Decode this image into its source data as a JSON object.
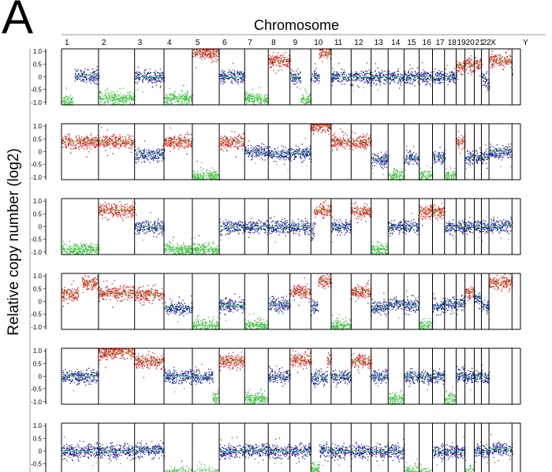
{
  "figure": {
    "panel_label": "A",
    "x_title": "Chromosome",
    "y_title": "Relative copy number (log2)"
  },
  "colors": {
    "gain": "#e0201b",
    "neutral": "#1f2a9e",
    "loss": "#3fbf3f",
    "axis": "#000000"
  },
  "chart_data": {
    "type": "scatter",
    "title": "",
    "xlabel": "Chromosome",
    "ylabel": "Relative copy number (log2)",
    "ylim": [
      -1.1,
      1.1
    ],
    "yticks": [
      1.0,
      0.5,
      0,
      -0.5,
      -1.0
    ],
    "ytick_labels": [
      "1.0",
      "0.5",
      "0",
      "-0.5",
      "-1.0"
    ],
    "chromosomes": [
      "1",
      "2",
      "3",
      "4",
      "5",
      "6",
      "7",
      "8",
      "9",
      "10",
      "11",
      "12",
      "13",
      "14",
      "15",
      "16",
      "17",
      "18",
      "19",
      "20",
      "21",
      "22",
      "X",
      "Y"
    ],
    "chromosome_relative_lengths": [
      249,
      243,
      198,
      191,
      181,
      171,
      159,
      146,
      141,
      136,
      135,
      134,
      115,
      107,
      102,
      90,
      81,
      78,
      59,
      63,
      48,
      51,
      155,
      57
    ],
    "samples": [
      {
        "segments": [
          [
            1,
            0,
            0.3,
            -0.95
          ],
          [
            1,
            0.35,
            1,
            0.05
          ],
          [
            2,
            0,
            1,
            -0.85
          ],
          [
            3,
            0,
            1,
            0
          ],
          [
            4,
            0,
            1,
            -0.85
          ],
          [
            5,
            0,
            1,
            0.95
          ],
          [
            6,
            0,
            1,
            0
          ],
          [
            7,
            0,
            1,
            -0.85
          ],
          [
            8,
            0,
            1,
            0.65
          ],
          [
            9,
            0,
            0.5,
            0
          ],
          [
            9,
            0.5,
            1,
            -0.9
          ],
          [
            10,
            0,
            0.4,
            0
          ],
          [
            10,
            0.4,
            1,
            0.95
          ],
          [
            11,
            0,
            1,
            0
          ],
          [
            12,
            0,
            1,
            0
          ],
          [
            13,
            0,
            1,
            0
          ],
          [
            14,
            0,
            1,
            0
          ],
          [
            15,
            0,
            1,
            0
          ],
          [
            16,
            0,
            1,
            0
          ],
          [
            17,
            0,
            1,
            0
          ],
          [
            18,
            0,
            1,
            0
          ],
          [
            19,
            0,
            1,
            0.45
          ],
          [
            20,
            0,
            1,
            0.5
          ],
          [
            21,
            0,
            1,
            0.5
          ],
          [
            22,
            0,
            0.7,
            -0.05
          ],
          [
            22,
            0.7,
            1,
            -0.35
          ],
          [
            23,
            0,
            1,
            0.65
          ],
          [
            24,
            0,
            0.03,
            0
          ]
        ]
      },
      {
        "segments": [
          [
            1,
            0,
            1,
            0.4
          ],
          [
            2,
            0,
            1,
            0.4
          ],
          [
            3,
            0,
            1,
            -0.1
          ],
          [
            4,
            0,
            1,
            0.4
          ],
          [
            5,
            0,
            1,
            -0.95
          ],
          [
            6,
            0,
            1,
            0.4
          ],
          [
            7,
            0,
            1,
            0
          ],
          [
            8,
            0,
            1,
            -0.1
          ],
          [
            9,
            0,
            1,
            -0.05
          ],
          [
            10,
            0,
            1,
            1.0
          ],
          [
            11,
            0,
            1,
            0.4
          ],
          [
            12,
            0,
            1,
            0.4
          ],
          [
            13,
            0,
            1,
            -0.3
          ],
          [
            14,
            0,
            1,
            -0.95
          ],
          [
            15,
            0,
            1,
            -0.25
          ],
          [
            16,
            0,
            1,
            -0.95
          ],
          [
            17,
            0,
            1,
            -0.2
          ],
          [
            18,
            0,
            1,
            -0.95
          ],
          [
            19,
            0,
            1,
            0.35
          ],
          [
            20,
            0,
            1,
            -0.2
          ],
          [
            21,
            0,
            1,
            -0.2
          ],
          [
            22,
            0,
            1,
            -0.2
          ],
          [
            23,
            0,
            1,
            0
          ]
        ]
      },
      {
        "segments": [
          [
            1,
            0,
            1,
            -0.9
          ],
          [
            2,
            0,
            1,
            0.65
          ],
          [
            3,
            0,
            1,
            0
          ],
          [
            4,
            0,
            1,
            -0.9
          ],
          [
            5,
            0,
            1,
            -0.9
          ],
          [
            6,
            0,
            1,
            0
          ],
          [
            7,
            0,
            1,
            0
          ],
          [
            8,
            0,
            1,
            0
          ],
          [
            9,
            0,
            1,
            0
          ],
          [
            10,
            0,
            0.15,
            -0.2
          ],
          [
            10,
            0.15,
            1,
            0.65
          ],
          [
            11,
            0,
            1,
            0
          ],
          [
            12,
            0,
            1,
            0.6
          ],
          [
            13,
            0,
            1,
            -0.9
          ],
          [
            14,
            0,
            1,
            0
          ],
          [
            15,
            0,
            1,
            0
          ],
          [
            16,
            0,
            1,
            0.6
          ],
          [
            17,
            0,
            1,
            0.6
          ],
          [
            18,
            0,
            1,
            0
          ],
          [
            19,
            0,
            1,
            0
          ],
          [
            20,
            0,
            1,
            0
          ],
          [
            21,
            0,
            1,
            0
          ],
          [
            22,
            0,
            1,
            0
          ],
          [
            23,
            0,
            0.5,
            0
          ],
          [
            23,
            0.5,
            1,
            0.05
          ]
        ]
      },
      {
        "segments": [
          [
            1,
            0,
            0.45,
            0.3
          ],
          [
            1,
            0.55,
            1,
            0.75
          ],
          [
            2,
            0,
            1,
            0.35
          ],
          [
            3,
            0,
            1,
            0.3
          ],
          [
            4,
            0,
            1,
            -0.25
          ],
          [
            5,
            0,
            1,
            -0.95
          ],
          [
            6,
            0,
            1,
            -0.15
          ],
          [
            7,
            0,
            1,
            -0.95
          ],
          [
            8,
            0,
            1,
            -0.1
          ],
          [
            9,
            0,
            1,
            0.4
          ],
          [
            10,
            0,
            0.35,
            -0.2
          ],
          [
            10,
            0.35,
            1,
            0.8
          ],
          [
            11,
            0,
            1,
            -0.95
          ],
          [
            12,
            0,
            1,
            0.4
          ],
          [
            13,
            0,
            1,
            -0.25
          ],
          [
            14,
            0,
            1,
            -0.1
          ],
          [
            15,
            0,
            1,
            -0.15
          ],
          [
            16,
            0,
            1,
            -0.95
          ],
          [
            17,
            0,
            1,
            -0.2
          ],
          [
            18,
            0,
            1,
            -0.1
          ],
          [
            19,
            0,
            1,
            -0.1
          ],
          [
            20,
            0,
            1,
            0.35
          ],
          [
            21,
            0,
            1,
            0.1
          ],
          [
            22,
            0,
            1,
            -0.2
          ],
          [
            23,
            0,
            1,
            0.75
          ]
        ]
      },
      {
        "segments": [
          [
            1,
            0,
            1,
            0
          ],
          [
            2,
            0,
            1,
            0.95
          ],
          [
            3,
            0,
            1,
            0.6
          ],
          [
            4,
            0,
            1,
            0
          ],
          [
            5,
            0,
            0.75,
            0
          ],
          [
            5,
            0.75,
            1,
            -0.85
          ],
          [
            6,
            0,
            1,
            0.6
          ],
          [
            7,
            0,
            1,
            -0.85
          ],
          [
            8,
            0,
            1,
            0
          ],
          [
            9,
            0,
            1,
            0.65
          ],
          [
            10,
            0,
            0.8,
            -0.05
          ],
          [
            10,
            0.8,
            1,
            0.65
          ],
          [
            11,
            0,
            1,
            0
          ],
          [
            12,
            0,
            1,
            0.6
          ],
          [
            13,
            0,
            1,
            0
          ],
          [
            14,
            0,
            1,
            -0.9
          ],
          [
            15,
            0,
            1,
            0
          ],
          [
            16,
            0,
            1,
            0
          ],
          [
            17,
            0,
            1,
            0
          ],
          [
            18,
            0,
            1,
            -0.9
          ],
          [
            19,
            0,
            1,
            0.05
          ],
          [
            20,
            0,
            1,
            0
          ],
          [
            21,
            0,
            1,
            0
          ],
          [
            22,
            0,
            1,
            0
          ]
        ]
      },
      {
        "segments": [
          [
            1,
            0,
            1,
            0
          ],
          [
            2,
            0,
            1,
            0
          ],
          [
            3,
            0,
            1,
            0.05
          ],
          [
            4,
            0,
            1,
            -0.9
          ],
          [
            5,
            0,
            1,
            -0.9
          ],
          [
            6,
            0,
            1,
            0
          ],
          [
            7,
            0,
            1,
            0.05
          ],
          [
            8,
            0,
            1,
            0
          ],
          [
            9,
            0,
            1,
            0
          ],
          [
            10,
            0,
            0.4,
            -0.7
          ],
          [
            10,
            0.4,
            1,
            0.05
          ],
          [
            11,
            0,
            1,
            0
          ],
          [
            12,
            0,
            1,
            0
          ],
          [
            13,
            0,
            1,
            0
          ],
          [
            14,
            0,
            1,
            0
          ],
          [
            15,
            0,
            1,
            -0.8
          ],
          [
            16,
            0,
            1,
            -0.9
          ],
          [
            17,
            0,
            1,
            0
          ],
          [
            18,
            0,
            1,
            0
          ],
          [
            19,
            0,
            1,
            0
          ],
          [
            20,
            0,
            1,
            -0.85
          ],
          [
            21,
            0,
            1,
            0
          ],
          [
            22,
            0,
            1,
            0
          ],
          [
            23,
            0,
            1,
            0.1
          ],
          [
            24,
            0,
            0.03,
            0
          ]
        ]
      }
    ]
  }
}
